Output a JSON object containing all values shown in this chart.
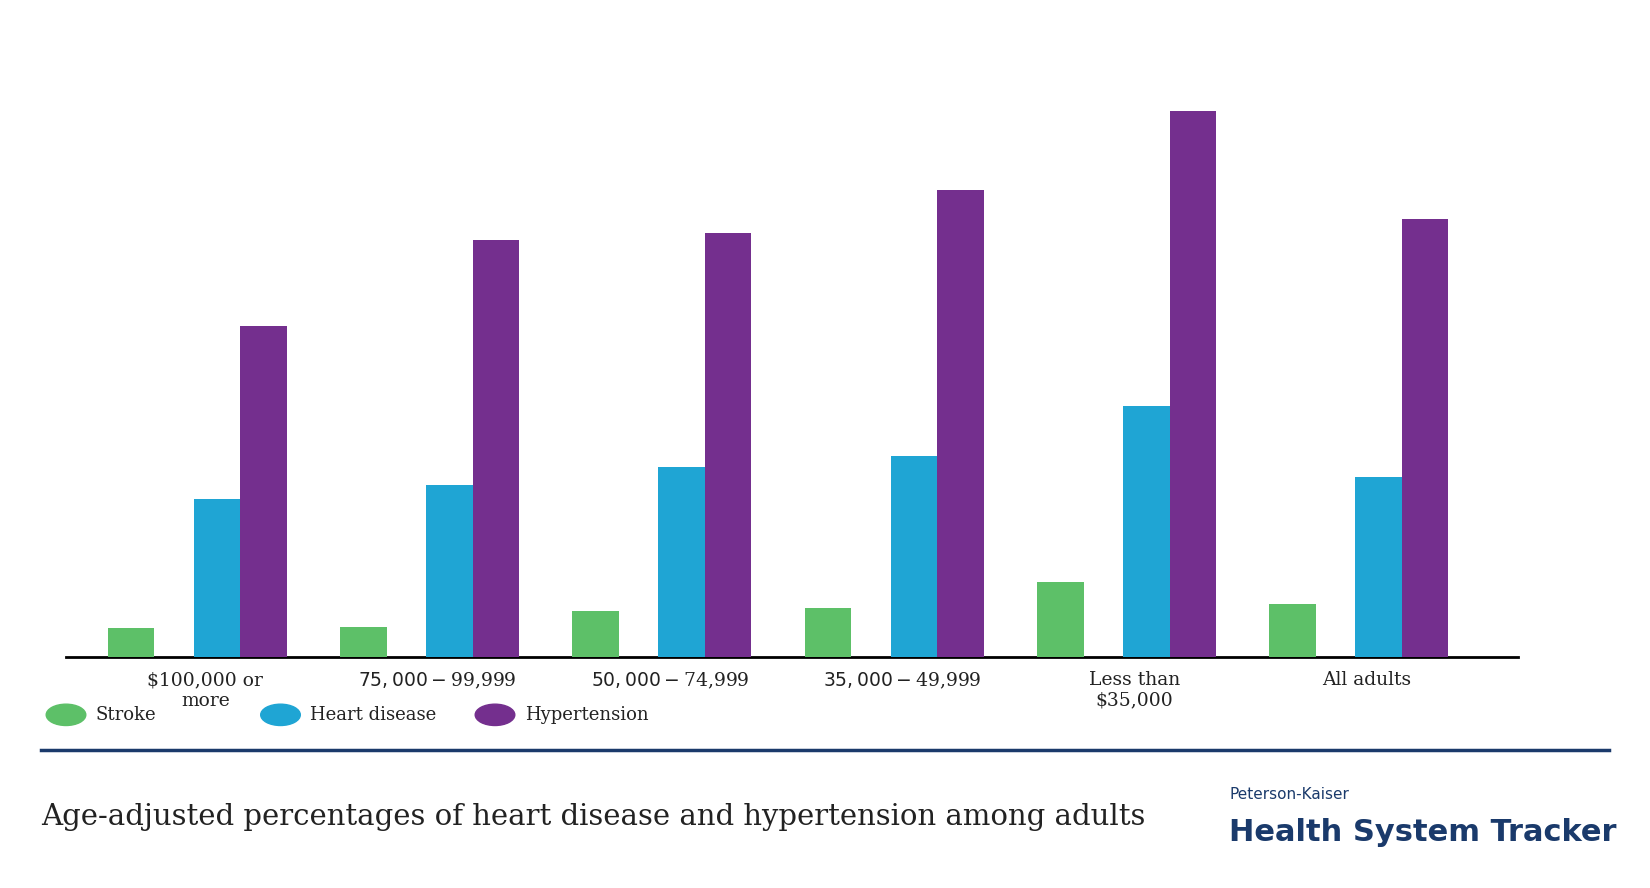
{
  "categories": [
    "$100,000 or\nmore",
    "$75,000-$99,999",
    "$50,000-$74,999",
    "$35,000-$49,999",
    "Less than\n$35,000",
    "All adults"
  ],
  "stroke": [
    2.0,
    2.1,
    3.2,
    3.4,
    5.2,
    3.7
  ],
  "heart_disease": [
    11.0,
    12.0,
    13.2,
    14.0,
    17.5,
    12.5
  ],
  "hypertension": [
    23.0,
    29.0,
    29.5,
    32.5,
    38.0,
    30.5
  ],
  "stroke_color": "#5dc068",
  "heart_color": "#1fa5d4",
  "hyper_color": "#742f8e",
  "bar_width": 0.2,
  "ylim": [
    0,
    42
  ],
  "legend_labels": [
    "Stroke",
    "Heart disease",
    "Hypertension"
  ],
  "footer_text": "Age-adjusted percentages of heart disease and hypertension among adults",
  "footer_brand_small": "Peterson-Kaiser",
  "footer_brand_large": "Health System Tracker",
  "bg_color": "#ffffff",
  "axis_line_color": "#000000",
  "footer_line_color": "#1a3a6b",
  "footer_text_color": "#1a3a6b"
}
